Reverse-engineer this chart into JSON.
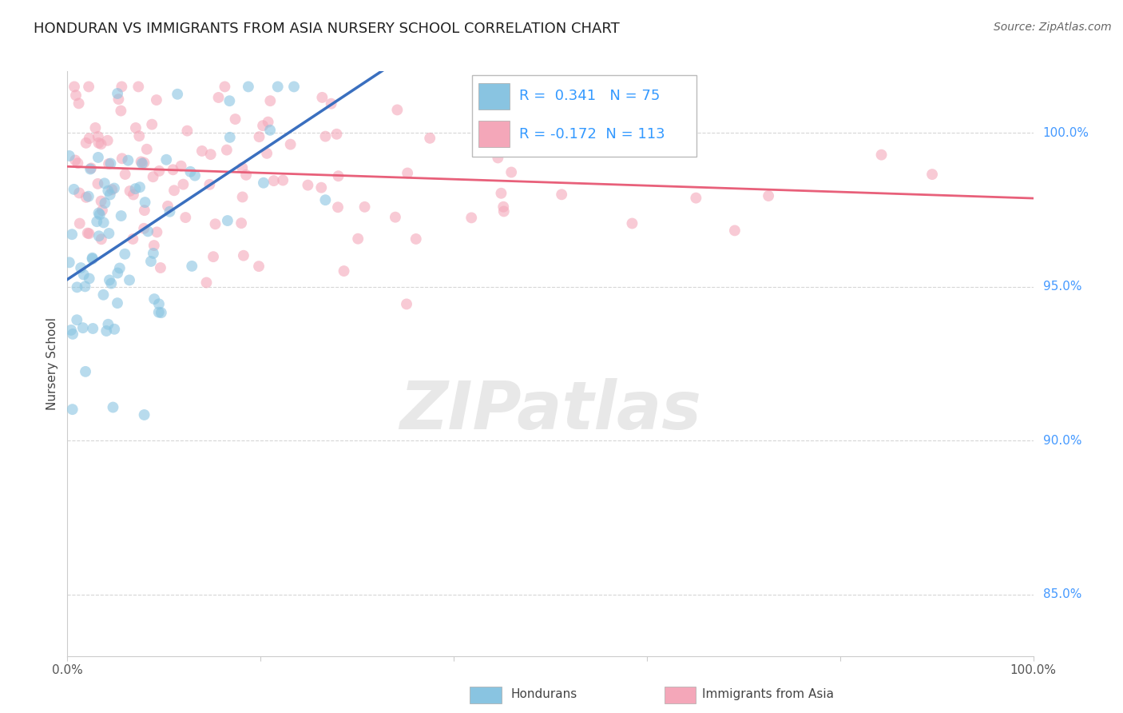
{
  "title": "HONDURAN VS IMMIGRANTS FROM ASIA NURSERY SCHOOL CORRELATION CHART",
  "source": "Source: ZipAtlas.com",
  "ylabel": "Nursery School",
  "R_blue": 0.341,
  "N_blue": 75,
  "R_pink": -0.172,
  "N_pink": 113,
  "blue_color": "#89c4e1",
  "pink_color": "#f4a7b9",
  "blue_line_color": "#3a6fbf",
  "pink_line_color": "#e8607a",
  "xlim": [
    0,
    100
  ],
  "ylim": [
    83,
    102
  ],
  "yticks": [
    85,
    90,
    95,
    100
  ],
  "ytick_labels": [
    "85.0%",
    "90.0%",
    "95.0%",
    "100.0%"
  ],
  "grid_color": "#cccccc",
  "title_color": "#222222",
  "title_fontsize": 13,
  "source_fontsize": 10,
  "axis_label_color": "#444444",
  "tick_label_color": "#4499ff",
  "watermark_text": "ZIPatlas",
  "watermark_color": "#e8e8e8",
  "legend_blue_label": "Hondurans",
  "legend_pink_label": "Immigrants from Asia"
}
